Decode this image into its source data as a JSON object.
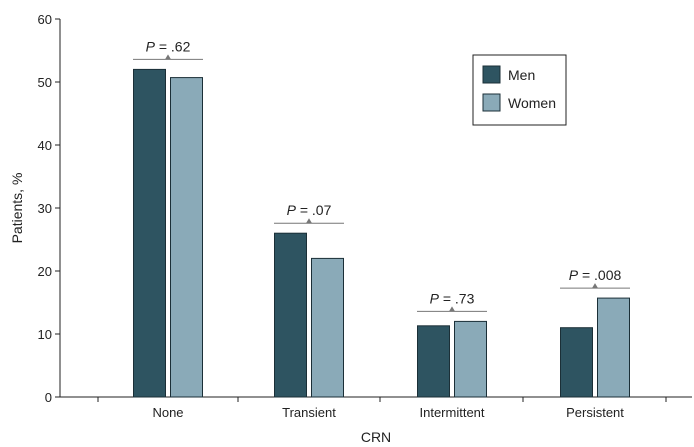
{
  "chart_data": {
    "type": "bar",
    "categories": [
      "None",
      "Transient",
      "Intermittent",
      "Persistent"
    ],
    "series": [
      {
        "name": "Men",
        "values": [
          52,
          26,
          11.3,
          11
        ],
        "color": "#2e5461"
      },
      {
        "name": "Women",
        "values": [
          50.7,
          22,
          12,
          15.7
        ],
        "color": "#8aaab8"
      }
    ],
    "xlabel": "CRN",
    "ylabel": "Patients, %",
    "ylim": [
      0,
      60
    ],
    "yticks": [
      0,
      10,
      20,
      30,
      40,
      50,
      60
    ],
    "annotations": [
      {
        "category": "None",
        "prefix": "P",
        "text": " = .62"
      },
      {
        "category": "Transient",
        "prefix": "P",
        "text": " = .07"
      },
      {
        "category": "Intermittent",
        "prefix": "P",
        "text": " = .73"
      },
      {
        "category": "Persistent",
        "prefix": "P",
        "text": " = .008"
      }
    ],
    "legend_position": "top-right",
    "grid": false
  }
}
